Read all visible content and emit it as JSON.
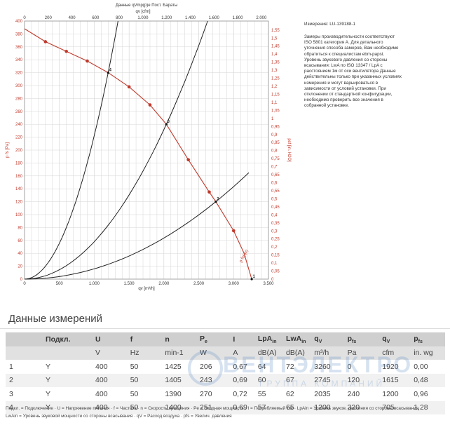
{
  "header_small": "Данные qVmp(p)e Пост. Бараты",
  "measure_id": "Измерение: LU-139188-1",
  "note": "Замеры производительности соответствуют ISO 5801 категория А. Для детального уточнения способа замеров, Вам необходимо обратиться к специалистам ebm-papst. Уровень звукового давления со стороны всасывания: LwA по ISO 13347 / LpA с расстоянием 1м от оси вентилятора Данные действительны только при указанных условиях измерения и могут варьироваться в зависимости от условий установки. При отклонении от стандартной конфигурации, необходимо проверить все значения в собранной установке.",
  "chart_data": {
    "type": "line",
    "xlabel_bottom": "qv [m³/h]",
    "xlabel_top": "qv [cfm]",
    "ylabel_left": "p fs [Pa]",
    "ylabel_right": "psf [in. H2O]",
    "x_range": [
      0,
      3500
    ],
    "y_range": [
      0,
      400
    ],
    "top_axis_range": [
      0,
      2000
    ],
    "right_axis_range": [
      0,
      1.6
    ],
    "bottom_ticks": [
      "0",
      "500",
      "1.000",
      "1.500",
      "2.000",
      "2.500",
      "3.000",
      "3.500"
    ],
    "top_ticks": [
      "0",
      "200",
      "400",
      "600",
      "800",
      "1.000",
      "1.200",
      "1.400",
      "1.600",
      "1.800",
      "2.000"
    ],
    "left_ticks": [
      "0",
      "20",
      "40",
      "60",
      "80",
      "100",
      "120",
      "140",
      "160",
      "180",
      "200",
      "220",
      "240",
      "260",
      "280",
      "300",
      "320",
      "340",
      "360",
      "380",
      "400"
    ],
    "right_ticks": [
      "0",
      "0,05",
      "0,1",
      "0,15",
      "0,2",
      "0,25",
      "0,3",
      "0,35",
      "0,4",
      "0,45",
      "0,5",
      "0,55",
      "0,6",
      "0,65",
      "0,7",
      "0,75",
      "0,8",
      "0,85",
      "0,9",
      "0,95",
      "1",
      "1,05",
      "1,1",
      "1,15",
      "1,2",
      "1,25",
      "1,3",
      "1,35",
      "1,4",
      "1,45",
      "1,5",
      "1,55"
    ],
    "fan_curve_label": "p fs(qv)",
    "grid": true,
    "fan_curve": [
      {
        "x": 0,
        "y": 388
      },
      {
        "x": 300,
        "y": 368
      },
      {
        "x": 600,
        "y": 353
      },
      {
        "x": 900,
        "y": 338
      },
      {
        "x": 1200,
        "y": 320
      },
      {
        "x": 1500,
        "y": 298
      },
      {
        "x": 1800,
        "y": 270
      },
      {
        "x": 2035,
        "y": 240
      },
      {
        "x": 2350,
        "y": 185
      },
      {
        "x": 2650,
        "y": 135
      },
      {
        "x": 2745,
        "y": 120
      },
      {
        "x": 3000,
        "y": 75
      },
      {
        "x": 3150,
        "y": 40
      },
      {
        "x": 3260,
        "y": 0
      }
    ],
    "fan_markers": [
      300,
      600,
      900,
      1500,
      1800,
      2350,
      2650,
      3000
    ],
    "operating_points": [
      {
        "label": "1",
        "x": 3260,
        "y": 0
      },
      {
        "label": "2",
        "x": 2745,
        "y": 120
      },
      {
        "label": "3",
        "x": 2035,
        "y": 240
      },
      {
        "label": "4",
        "x": 1200,
        "y": 320
      }
    ],
    "system_curves": [
      {
        "through_x": 1200,
        "through_y": 320,
        "to_y": 400
      },
      {
        "through_x": 2035,
        "through_y": 240,
        "to_y": 400
      },
      {
        "through_x": 2745,
        "through_y": 120,
        "to_y": 165
      }
    ]
  },
  "section_title": "Данные измерений",
  "table": {
    "header": [
      "",
      "Подкл.",
      "U",
      "f",
      "n",
      "P",
      "I",
      "LpA",
      "LwA",
      "q",
      "p",
      "q",
      "p"
    ],
    "header_subs": [
      "",
      "",
      "",
      "",
      "",
      "e",
      "",
      "in",
      "in",
      "V",
      "fs",
      "V",
      "fs"
    ],
    "units": [
      "",
      "",
      "V",
      "Hz",
      "min-1",
      "W",
      "A",
      "dB(A)",
      "dB(A)",
      "m³/h",
      "Pa",
      "cfm",
      "in. wg"
    ],
    "rows": [
      [
        "1",
        "Y",
        "400",
        "50",
        "1425",
        "206",
        "0,67",
        "64",
        "72",
        "3260",
        "0",
        "1920",
        "0,00"
      ],
      [
        "2",
        "Y",
        "400",
        "50",
        "1405",
        "243",
        "0,69",
        "60",
        "67",
        "2745",
        "120",
        "1615",
        "0,48"
      ],
      [
        "3",
        "Y",
        "400",
        "50",
        "1390",
        "270",
        "0,72",
        "55",
        "62",
        "2035",
        "240",
        "1200",
        "0,96"
      ],
      [
        "4",
        "Y",
        "400",
        "50",
        "1400",
        "251",
        "0,69",
        "57",
        "65",
        "1200",
        "320",
        "705",
        "1,28"
      ]
    ]
  },
  "watermark": {
    "main": "ВЕНТЭЛЕКТРО",
    "sub": "ГРУППА КОМПАНИЙ"
  },
  "legend": {
    "line1": "Подкл. = Подключение · U = Напряжение питания · f = Частота · n = Скорость вращения · Pe = Входная мощность · I = Потребляемый ток · LpAin = Уровень звуков. давления со стороны всасывания",
    "line2": "LwAin = Уровень звуковой мощности со стороны всасывания · qV = Расход воздуха · pfs = Увелич. давления"
  },
  "colors": {
    "fan_curve": "#c0392b",
    "system_curve": "#222222",
    "grid": "#d6d6d6",
    "table_header": "#cfcfcf"
  }
}
